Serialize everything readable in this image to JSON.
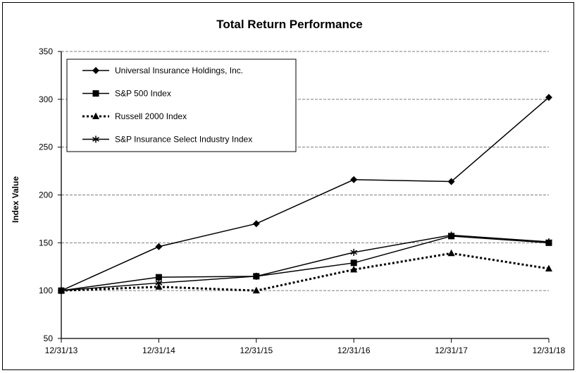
{
  "chart_data": {
    "type": "line",
    "title": "Total Return Performance",
    "xlabel": "",
    "ylabel": "Index Value",
    "categories": [
      "12/31/13",
      "12/31/14",
      "12/31/15",
      "12/31/16",
      "12/31/17",
      "12/31/18"
    ],
    "ylim": [
      50,
      350
    ],
    "yticks": [
      50,
      100,
      150,
      200,
      250,
      300,
      350
    ],
    "grid": "horizontal dashed",
    "legend_position": "top-left",
    "series": [
      {
        "name": "Universal Insurance Holdings, Inc.",
        "marker": "diamond",
        "line": "solid",
        "values": [
          100,
          146,
          170,
          216,
          214,
          302
        ]
      },
      {
        "name": "S&P 500 Index",
        "marker": "square",
        "line": "solid",
        "values": [
          100,
          114,
          115,
          129,
          157,
          150
        ]
      },
      {
        "name": "Russell 2000 Index",
        "marker": "triangle",
        "line": "dotted",
        "values": [
          100,
          104,
          100,
          122,
          139,
          123
        ]
      },
      {
        "name": "S&P Insurance Select Industry Index",
        "marker": "star",
        "line": "solid",
        "values": [
          100,
          108,
          115,
          140,
          158,
          151
        ]
      }
    ]
  }
}
